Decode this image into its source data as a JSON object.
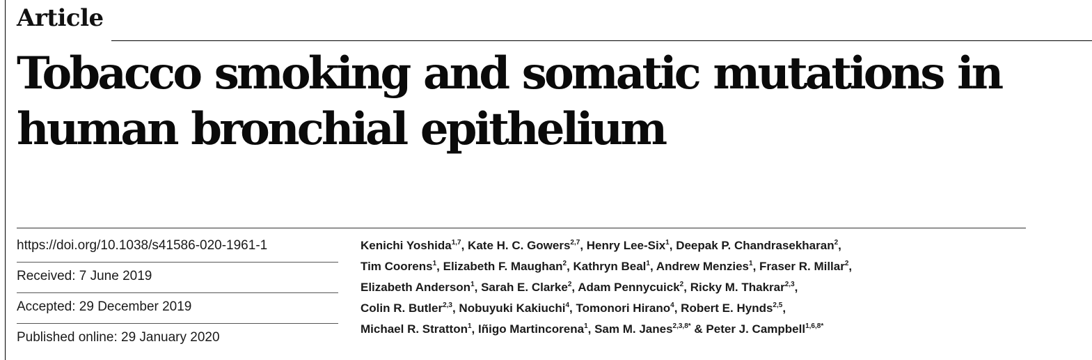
{
  "article": {
    "section_label": "Article",
    "title_lines": [
      "Tobacco smoking and somatic mutations in",
      "human bronchial epithelium"
    ],
    "doi": "https://doi.org/10.1038/s41586-020-1961-1",
    "received": "Received: 7 June 2019",
    "accepted": "Accepted: 29 December 2019",
    "published": "Published online: 29 January 2020",
    "author_lines": [
      [
        {
          "name": "Kenichi Yoshida",
          "sup": "1,7",
          "after": ", "
        },
        {
          "name": "Kate H. C. Gowers",
          "sup": "2,7",
          "after": ", "
        },
        {
          "name": "Henry Lee-Six",
          "sup": "1",
          "after": ", "
        },
        {
          "name": "Deepak P. Chandrasekharan",
          "sup": "2",
          "after": ","
        }
      ],
      [
        {
          "name": "Tim Coorens",
          "sup": "1",
          "after": ", "
        },
        {
          "name": "Elizabeth F. Maughan",
          "sup": "2",
          "after": ", "
        },
        {
          "name": "Kathryn Beal",
          "sup": "1",
          "after": ", "
        },
        {
          "name": "Andrew Menzies",
          "sup": "1",
          "after": ", "
        },
        {
          "name": "Fraser R. Millar",
          "sup": "2",
          "after": ","
        }
      ],
      [
        {
          "name": "Elizabeth Anderson",
          "sup": "1",
          "after": ", "
        },
        {
          "name": "Sarah E. Clarke",
          "sup": "2",
          "after": ", "
        },
        {
          "name": "Adam Pennycuick",
          "sup": "2",
          "after": ", "
        },
        {
          "name": "Ricky M. Thakrar",
          "sup": "2,3",
          "after": ","
        }
      ],
      [
        {
          "name": "Colin R. Butler",
          "sup": "2,3",
          "after": ", "
        },
        {
          "name": "Nobuyuki Kakiuchi",
          "sup": "4",
          "after": ", "
        },
        {
          "name": "Tomonori Hirano",
          "sup": "4",
          "after": ", "
        },
        {
          "name": "Robert E. Hynds",
          "sup": "2,5",
          "after": ","
        }
      ],
      [
        {
          "name": "Michael R. Stratton",
          "sup": "1",
          "after": ", "
        },
        {
          "name": "Iñigo Martincorena",
          "sup": "1",
          "after": ", "
        },
        {
          "name": "Sam M. Janes",
          "sup": "2,3,8*",
          "after": " & "
        },
        {
          "name": "Peter J. Campbell",
          "sup": "1,6,8*",
          "after": ""
        }
      ]
    ]
  }
}
